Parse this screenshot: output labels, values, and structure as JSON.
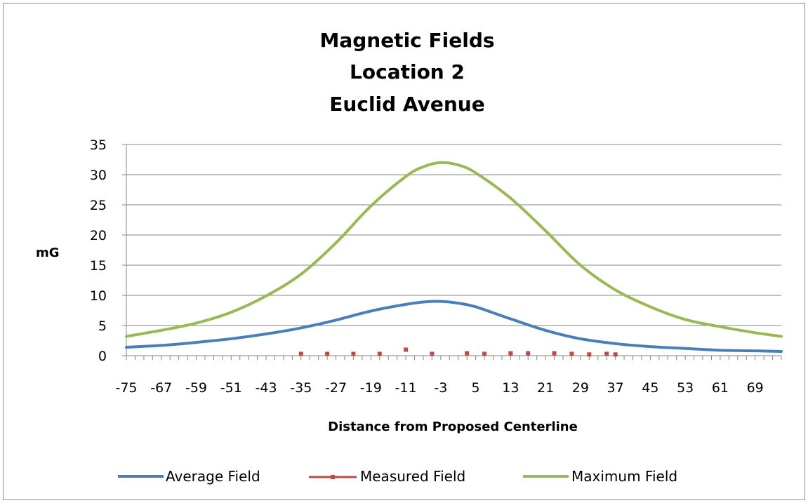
{
  "chart_data": {
    "type": "line",
    "title": [
      "Magnetic Fields",
      "Location 2",
      "Euclid Avenue"
    ],
    "xlabel": "Distance from Proposed Centerline",
    "ylabel": "mG",
    "xlim": [
      -75,
      75
    ],
    "ylim": [
      0,
      35
    ],
    "yticks": [
      0,
      5,
      10,
      15,
      20,
      25,
      30,
      35
    ],
    "xticks": [
      -75,
      -67,
      -59,
      -51,
      -43,
      -35,
      -27,
      -19,
      -11,
      -3,
      5,
      13,
      21,
      29,
      37,
      45,
      53,
      61,
      69
    ],
    "grid": "horizontal",
    "legend_position": "bottom",
    "colors": {
      "average": "#4a7ebb",
      "measured": "#be4b48",
      "maximum": "#98b954"
    },
    "series": [
      {
        "name": "Average Field",
        "style": "line",
        "x": [
          -75,
          -67,
          -59,
          -51,
          -43,
          -35,
          -27,
          -19,
          -11,
          -7,
          -3,
          1,
          5,
          13,
          21,
          29,
          37,
          45,
          53,
          61,
          69,
          75
        ],
        "y": [
          1.4,
          1.7,
          2.2,
          2.8,
          3.6,
          4.6,
          5.9,
          7.4,
          8.5,
          8.9,
          9.0,
          8.7,
          8.1,
          6.1,
          4.2,
          2.8,
          2.0,
          1.5,
          1.2,
          0.9,
          0.8,
          0.7
        ]
      },
      {
        "name": "Measured Field",
        "style": "markers",
        "x": [
          -35,
          -29,
          -23,
          -17,
          -11,
          -5,
          3,
          7,
          13,
          17,
          23,
          27,
          31,
          35,
          37
        ],
        "y": [
          0.3,
          0.3,
          0.3,
          0.3,
          1.0,
          0.3,
          0.4,
          0.3,
          0.4,
          0.4,
          0.4,
          0.3,
          0.2,
          0.3,
          0.2
        ]
      },
      {
        "name": "Maximum Field",
        "style": "line",
        "x": [
          -75,
          -67,
          -59,
          -51,
          -43,
          -35,
          -27,
          -19,
          -11,
          -7,
          -3,
          1,
          5,
          13,
          21,
          29,
          37,
          45,
          53,
          61,
          69,
          75
        ],
        "y": [
          3.2,
          4.2,
          5.4,
          7.2,
          9.9,
          13.5,
          18.7,
          24.8,
          29.7,
          31.3,
          32.0,
          31.6,
          30.3,
          26.1,
          20.7,
          15.0,
          10.9,
          8.1,
          6.0,
          4.8,
          3.8,
          3.2
        ]
      }
    ]
  }
}
